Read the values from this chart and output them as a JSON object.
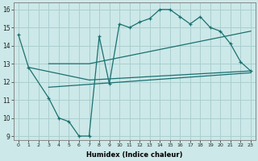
{
  "xlabel": "Humidex (Indice chaleur)",
  "xlim": [
    -0.5,
    23.5
  ],
  "ylim": [
    8.8,
    16.4
  ],
  "yticks": [
    9,
    10,
    11,
    12,
    13,
    14,
    15,
    16
  ],
  "xticks": [
    0,
    1,
    2,
    3,
    4,
    5,
    6,
    7,
    8,
    9,
    10,
    11,
    12,
    13,
    14,
    15,
    16,
    17,
    18,
    19,
    20,
    21,
    22,
    23
  ],
  "background_color": "#cce8e8",
  "grid_color": "#aacfcf",
  "line_color": "#1a7070",
  "line1_x": [
    0,
    1,
    3,
    4,
    5,
    6,
    7,
    8,
    9,
    10,
    11,
    12,
    13,
    14,
    15,
    16,
    17,
    18,
    19,
    20,
    21,
    22,
    23
  ],
  "line1_y": [
    14.6,
    12.8,
    11.1,
    10.0,
    9.8,
    9.0,
    9.0,
    14.5,
    11.9,
    15.2,
    15.0,
    15.3,
    15.5,
    16.0,
    16.0,
    15.6,
    15.2,
    15.6,
    15.0,
    14.8,
    14.1,
    13.1,
    12.6
  ],
  "line2_x": [
    1,
    7,
    23
  ],
  "line2_y": [
    12.8,
    12.1,
    12.6
  ],
  "line3_x": [
    3,
    7,
    23
  ],
  "line3_y": [
    13.0,
    13.0,
    14.8
  ],
  "line4_x": [
    3,
    23
  ],
  "line4_y": [
    11.7,
    12.5
  ]
}
